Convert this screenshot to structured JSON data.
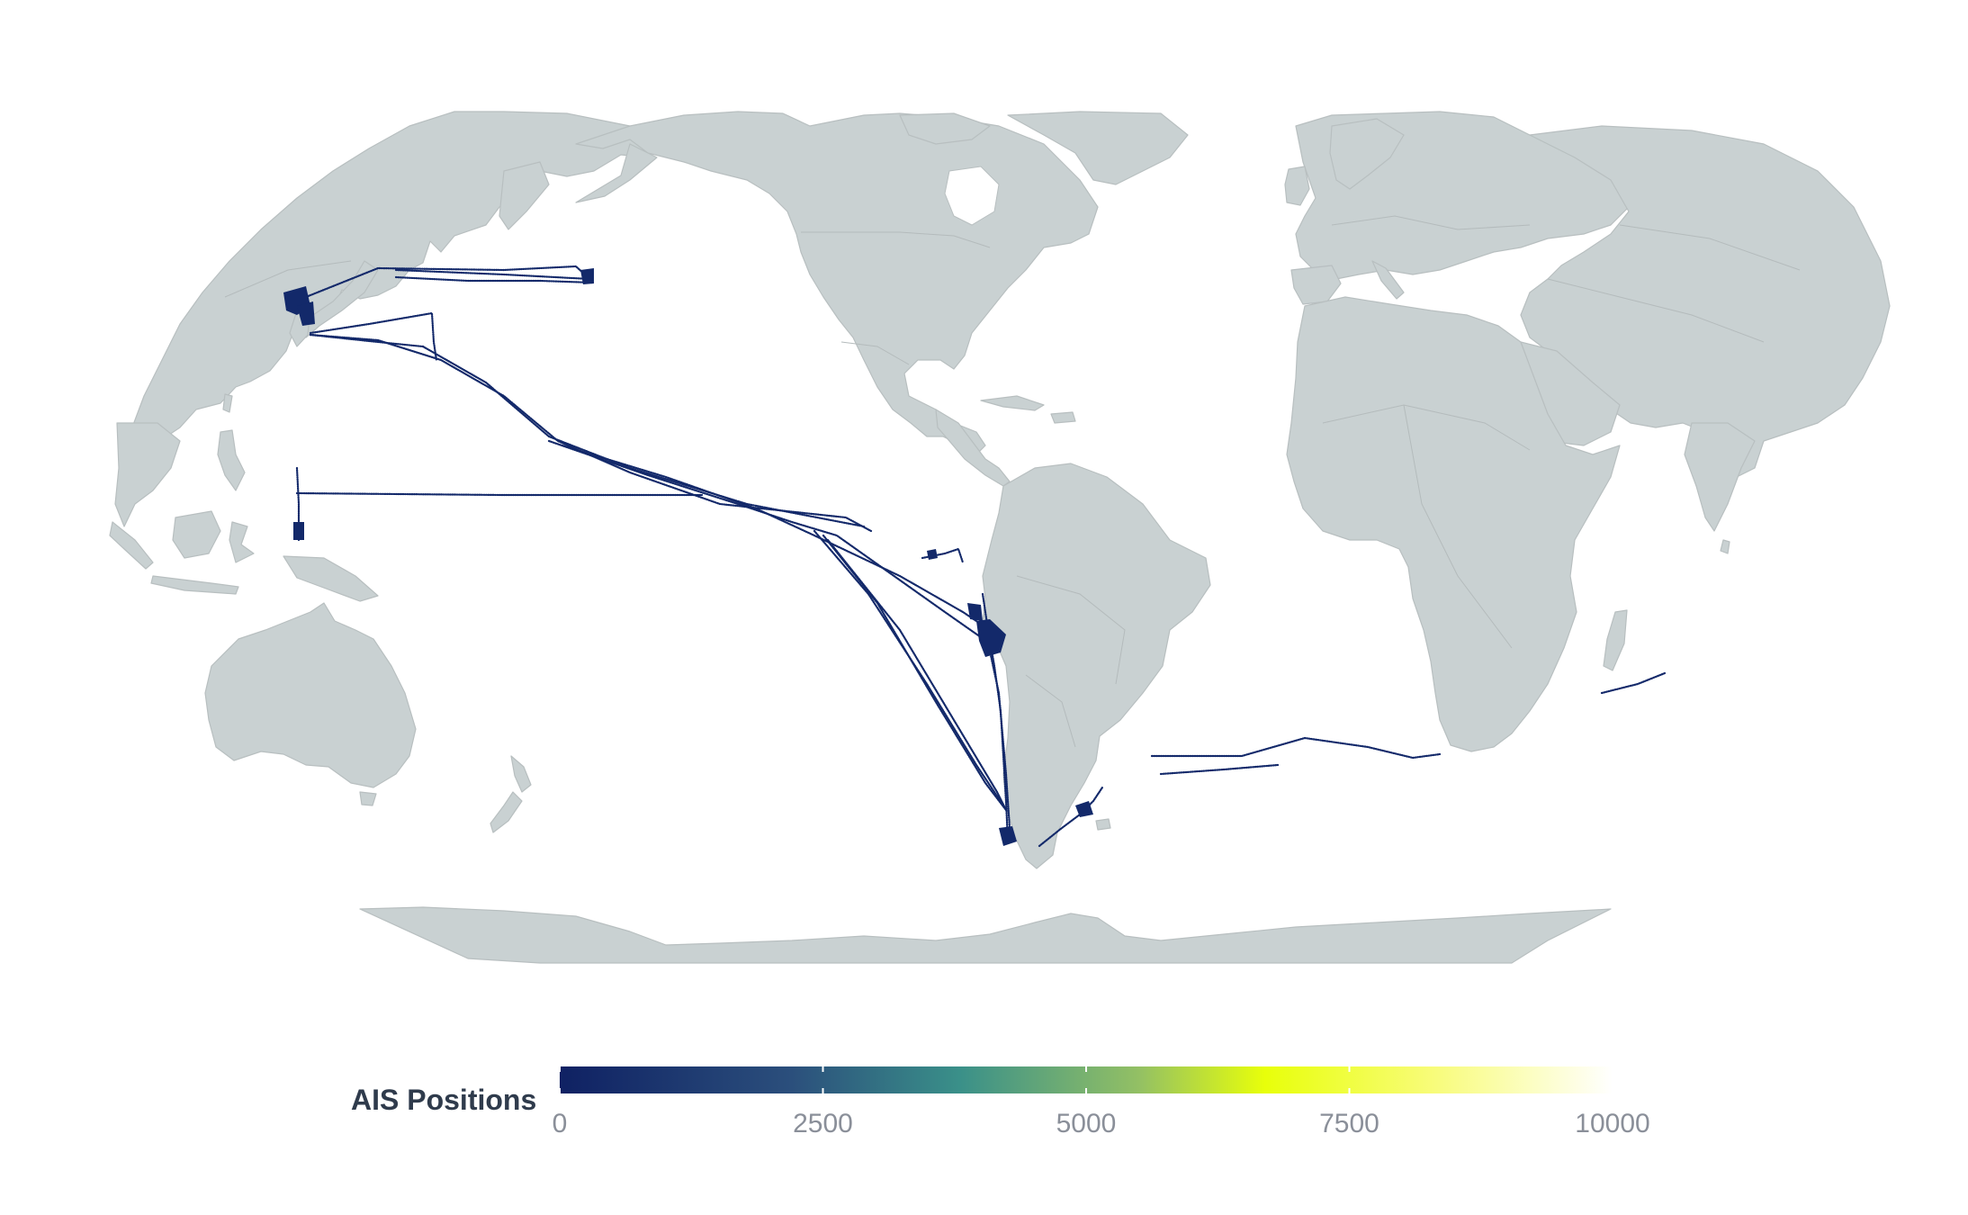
{
  "legend": {
    "title": "AIS Positions",
    "ticks": [
      {
        "label": "0",
        "value": 0
      },
      {
        "label": "2500",
        "value": 2500
      },
      {
        "label": "5000",
        "value": 5000
      },
      {
        "label": "7500",
        "value": 7500
      },
      {
        "label": "10000",
        "value": 10000
      }
    ],
    "range": [
      0,
      10000
    ],
    "colors": [
      "#0f2163",
      "#2b4f7c",
      "#3a9089",
      "#93c064",
      "#e8ff0a",
      "#f8fc7a",
      "#ffffff"
    ]
  },
  "map": {
    "land_color": "#c9d1d2",
    "track_color": "#13296a",
    "projection": "Equal Earth (Pacific-centered)"
  }
}
